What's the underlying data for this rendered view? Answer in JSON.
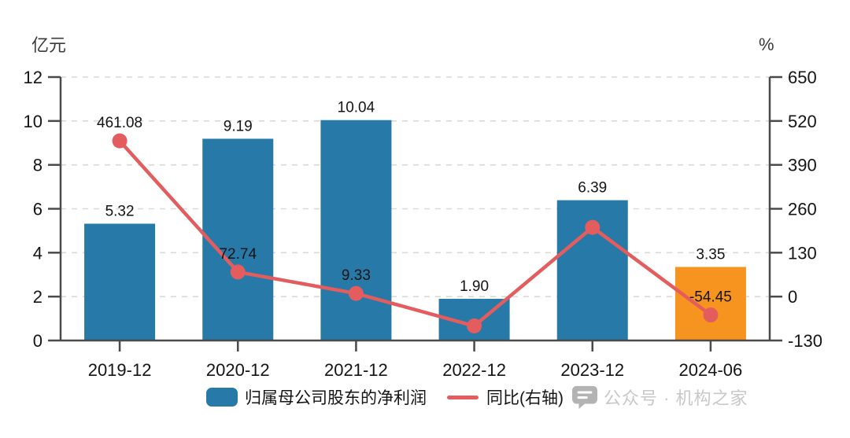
{
  "chart_data": {
    "type": "bar",
    "subtype": "bar-line-combo",
    "title": "",
    "categories": [
      "2019-12",
      "2020-12",
      "2021-12",
      "2022-12",
      "2023-12",
      "2024-06"
    ],
    "series": [
      {
        "name": "归属母公司股东的净利润",
        "type": "bar",
        "axis": "left",
        "values": [
          5.32,
          9.19,
          10.04,
          1.9,
          6.39,
          3.35
        ],
        "data_labels": [
          "5.32",
          "9.19",
          "10.04",
          "1.90",
          "6.39",
          "3.35"
        ],
        "point_colors": [
          "#2779a8",
          "#2779a8",
          "#2779a8",
          "#2779a8",
          "#2779a8",
          "#f6941f"
        ]
      },
      {
        "name": "同比(右轴)",
        "type": "line",
        "axis": "right",
        "values": [
          461.08,
          72.74,
          9.33,
          -87,
          205,
          -54.45
        ],
        "data_labels": [
          "461.08",
          "72.74",
          "9.33",
          "",
          "",
          "-54.45"
        ],
        "color": "#e35d5e",
        "note": "points at 2022-12 and 2023-12 carry no data label in the chart; values estimated from gridlines"
      }
    ],
    "left_axis": {
      "unit": "亿元",
      "ticks": [
        12,
        10,
        8,
        6,
        4,
        2,
        0
      ],
      "range": [
        0,
        12
      ]
    },
    "right_axis": {
      "unit": "%",
      "ticks": [
        650,
        520,
        390,
        260,
        130,
        0,
        -130
      ],
      "range": [
        -130,
        650
      ]
    },
    "grid": "horizontal-dashed",
    "legend_position": "bottom"
  },
  "legend": {
    "items": [
      {
        "label": "归属母公司股东的净利润",
        "swatch": "bar"
      },
      {
        "label": "同比(右轴)",
        "swatch": "line"
      }
    ]
  },
  "watermark": {
    "icon": "chat-bubble-icon",
    "text": "公众号 · 机构之家"
  },
  "colors": {
    "bar": "#2779a8",
    "bar_highlight": "#f6941f",
    "line": "#e35d5e",
    "axis": "#4a4a4b",
    "grid": "#d9d9d9",
    "text": "#141414",
    "watermark_text": "#c8c8c8",
    "watermark_icon": "#b3b3b3"
  }
}
